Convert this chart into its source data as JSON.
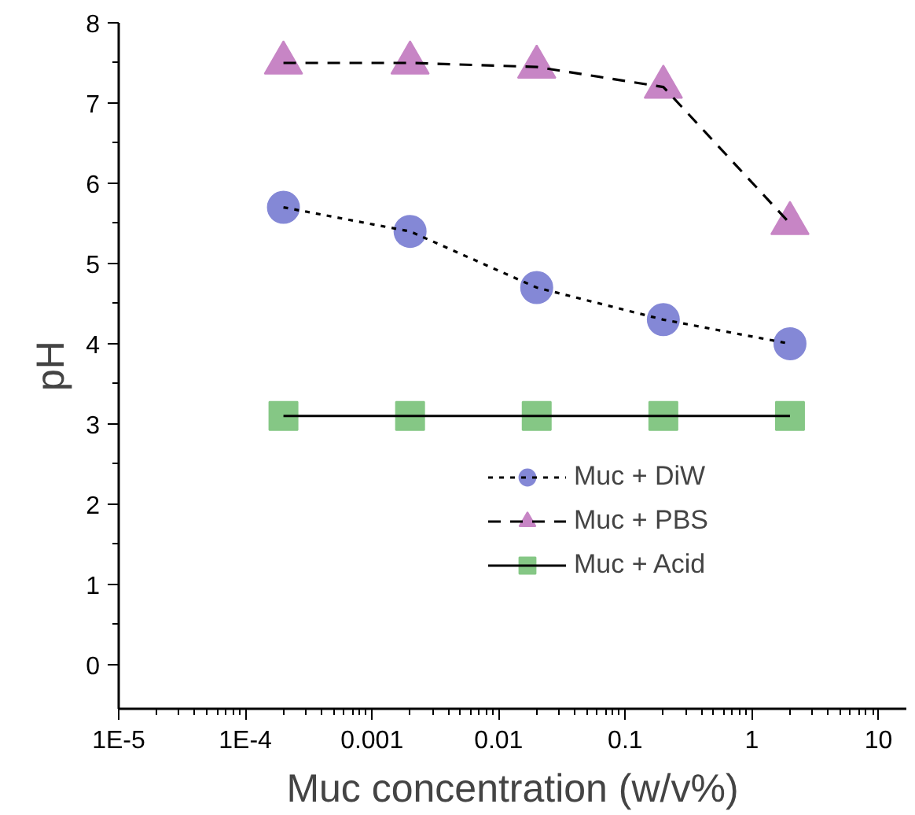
{
  "chart_data": {
    "type": "line",
    "xlabel": "Muc concentration (w/v%)",
    "ylabel": "pH",
    "x": [
      0.0002,
      0.002,
      0.02,
      0.2,
      2
    ],
    "series": [
      {
        "name": "Muc + DiW",
        "color": "#8488d6",
        "marker": "circle",
        "line_style": "dotted",
        "values": [
          5.7,
          5.4,
          4.7,
          4.3,
          4.0
        ]
      },
      {
        "name": "Muc + PBS",
        "color": "#c785c5",
        "marker": "triangle",
        "line_style": "dashed",
        "values": [
          7.5,
          7.5,
          7.45,
          7.2,
          5.5
        ]
      },
      {
        "name": "Muc + Acid",
        "color": "#85c785",
        "marker": "square",
        "line_style": "solid",
        "values": [
          3.1,
          3.1,
          3.1,
          3.1,
          3.1
        ]
      }
    ],
    "log": "x",
    "xlim": [
      1e-05,
      16.6
    ],
    "ylim": [
      -0.55,
      8
    ],
    "xticks": [
      {
        "value": 1e-05,
        "label": "1E-5"
      },
      {
        "value": 0.0001,
        "label": "1E-4"
      },
      0.001,
      0.01,
      0.1,
      1,
      10
    ],
    "yticks": [
      0,
      1,
      2,
      3,
      4,
      5,
      6,
      7,
      8
    ],
    "grid": false,
    "legend": "right"
  }
}
